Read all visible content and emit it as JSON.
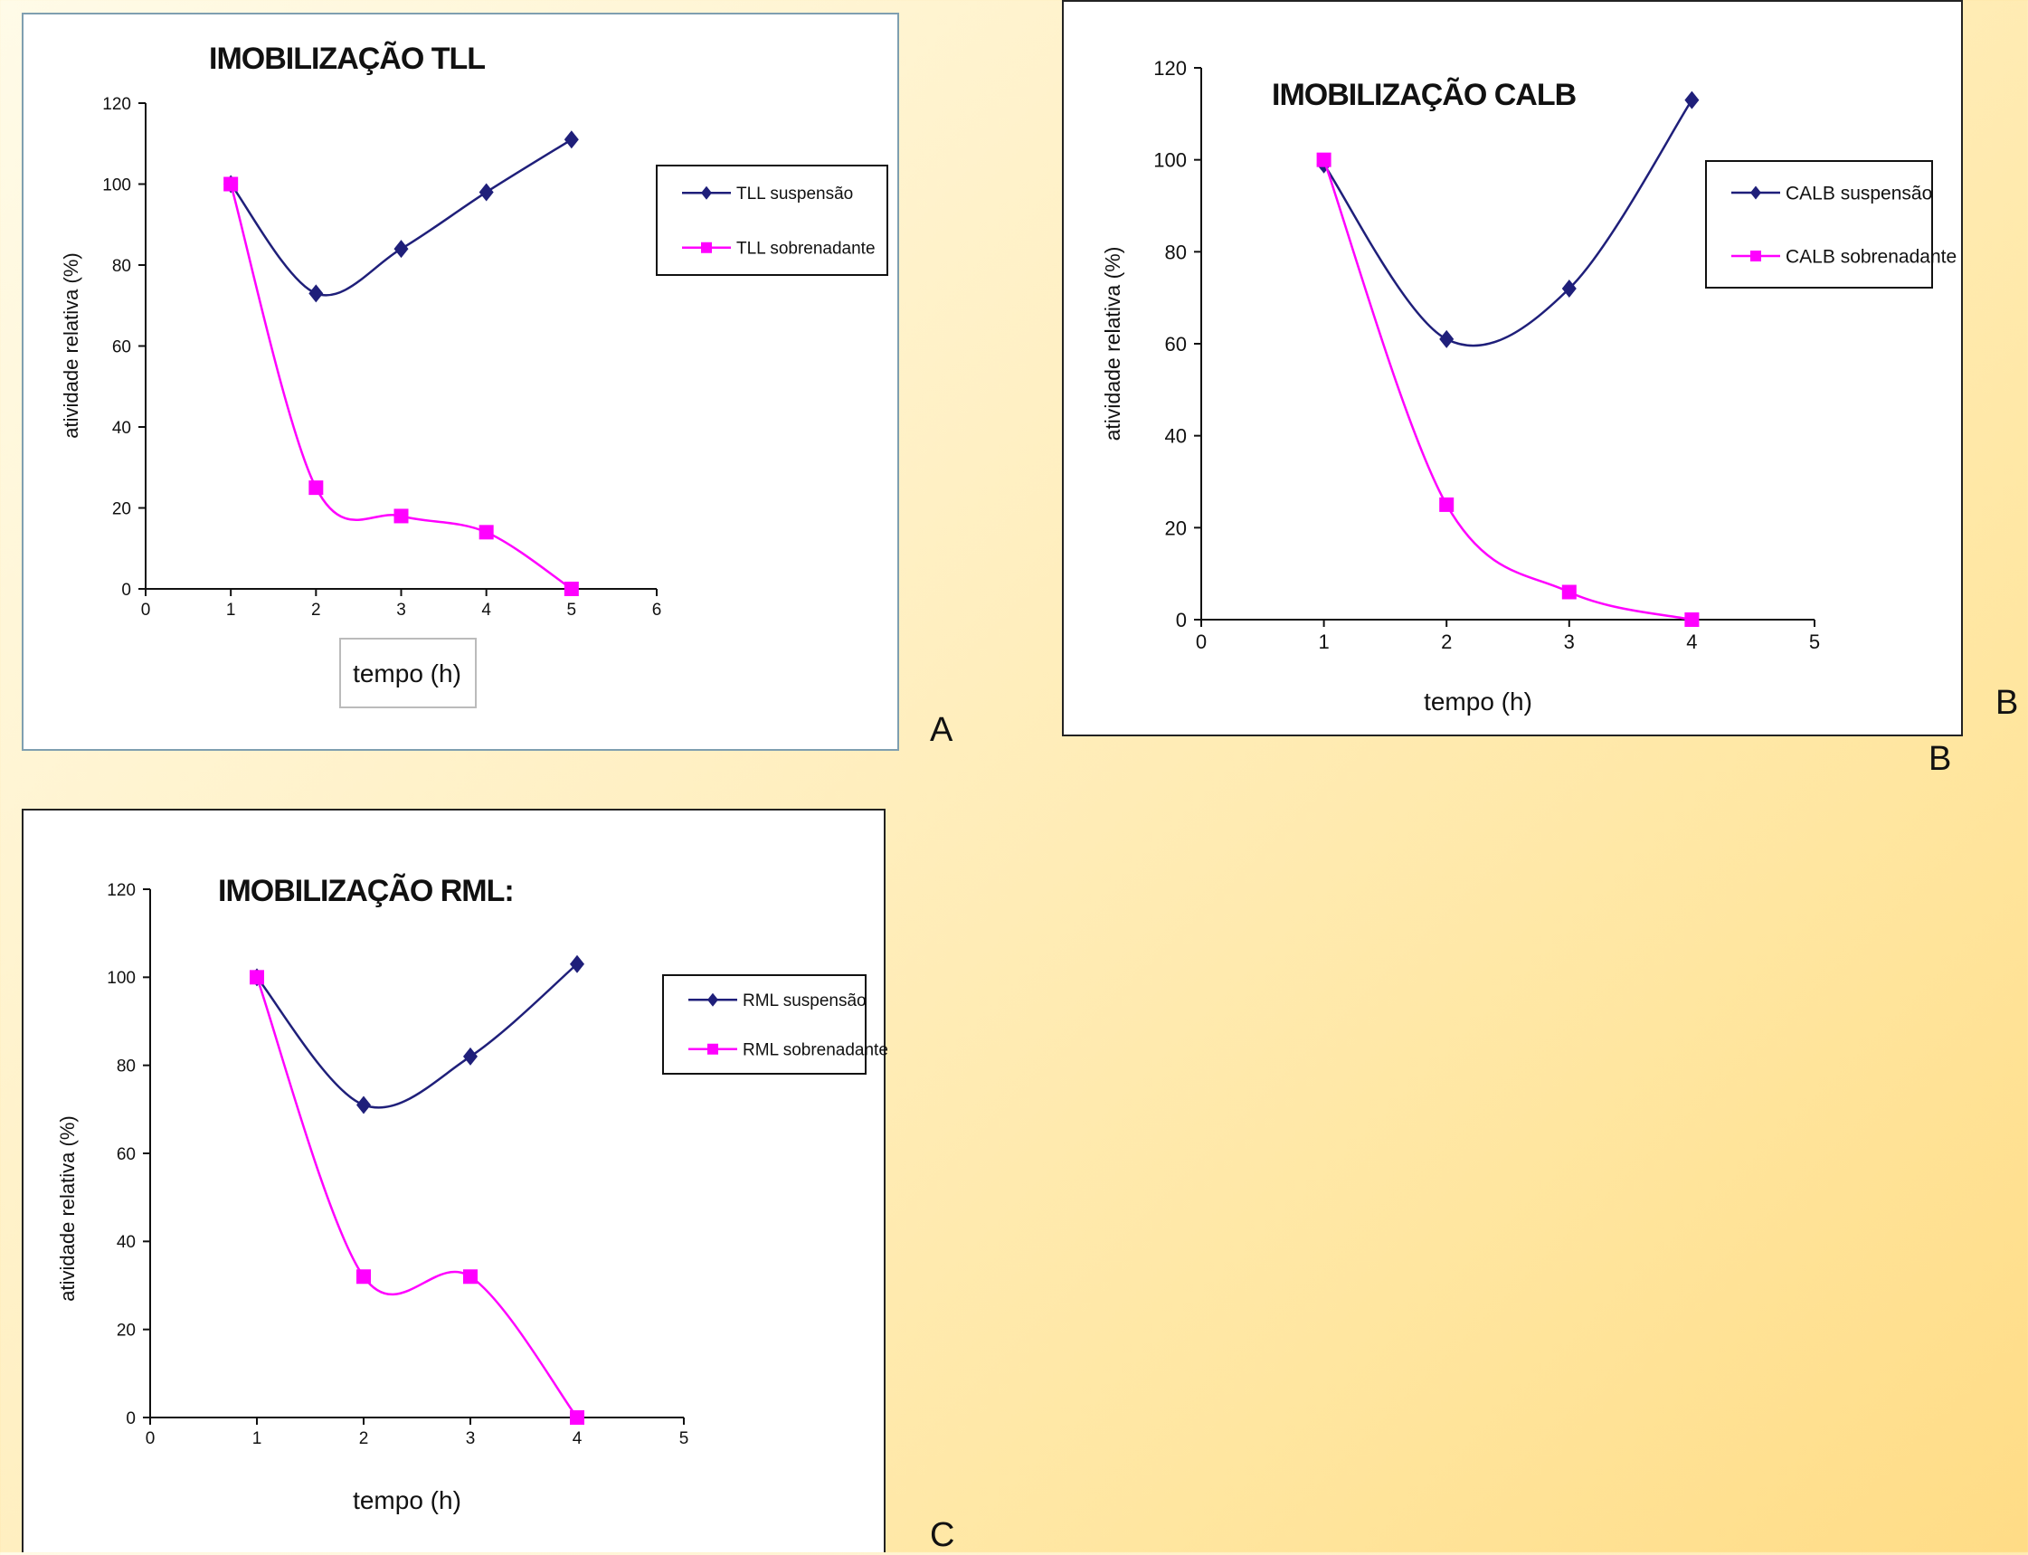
{
  "corner_letters": {
    "a": "A",
    "b_right": "B",
    "b_below": "B",
    "c": "C"
  },
  "colors": {
    "series1": "#1f1f7a",
    "series2": "#ff00ff"
  },
  "chart_data": [
    {
      "type": "line",
      "title": "IMOBILIZAÇÃO TLL",
      "xlabel": "tempo (h)",
      "ylabel": "atividade relativa (%)",
      "xlim": [
        0,
        6
      ],
      "ylim": [
        0,
        120
      ],
      "xticks": [
        0,
        1,
        2,
        3,
        4,
        5,
        6
      ],
      "yticks": [
        0,
        20,
        40,
        60,
        80,
        100,
        120
      ],
      "legend_position": "top-right",
      "series": [
        {
          "name": "TLL suspensão",
          "marker": "diamond",
          "x": [
            1,
            2,
            3,
            4,
            5
          ],
          "values": [
            100,
            73,
            84,
            98,
            111
          ]
        },
        {
          "name": "TLL sobrenadante",
          "marker": "square",
          "x": [
            1,
            2,
            3,
            4,
            5
          ],
          "values": [
            100,
            25,
            18,
            14,
            0
          ]
        }
      ]
    },
    {
      "type": "line",
      "title": "IMOBILIZAÇÃO CALB",
      "xlabel": "tempo (h)",
      "ylabel": "atividade relativa (%)",
      "xlim": [
        0,
        5
      ],
      "ylim": [
        0,
        120
      ],
      "xticks": [
        0,
        1,
        2,
        3,
        4,
        5
      ],
      "yticks": [
        0,
        20,
        40,
        60,
        80,
        100,
        120
      ],
      "legend_position": "top-right",
      "series": [
        {
          "name": "CALB suspensão",
          "marker": "diamond",
          "x": [
            1,
            2,
            3,
            4
          ],
          "values": [
            99,
            61,
            72,
            113
          ]
        },
        {
          "name": "CALB sobrenadante",
          "marker": "square",
          "x": [
            1,
            2,
            3,
            4
          ],
          "values": [
            100,
            25,
            6,
            0
          ]
        }
      ]
    },
    {
      "type": "line",
      "title": "IMOBILIZAÇÃO RML:",
      "xlabel": "tempo (h)",
      "ylabel": "atividade relativa (%)",
      "xlim": [
        0,
        5
      ],
      "ylim": [
        0,
        120
      ],
      "xticks": [
        0,
        1,
        2,
        3,
        4,
        5
      ],
      "yticks": [
        0,
        20,
        40,
        60,
        80,
        100,
        120
      ],
      "legend_position": "top-right",
      "series": [
        {
          "name": "RML suspensão",
          "marker": "diamond",
          "x": [
            1,
            2,
            3,
            4
          ],
          "values": [
            100,
            71,
            82,
            103
          ]
        },
        {
          "name": "RML sobrenadante",
          "marker": "square",
          "x": [
            1,
            2,
            3,
            4
          ],
          "values": [
            100,
            32,
            32,
            0
          ]
        }
      ]
    }
  ]
}
